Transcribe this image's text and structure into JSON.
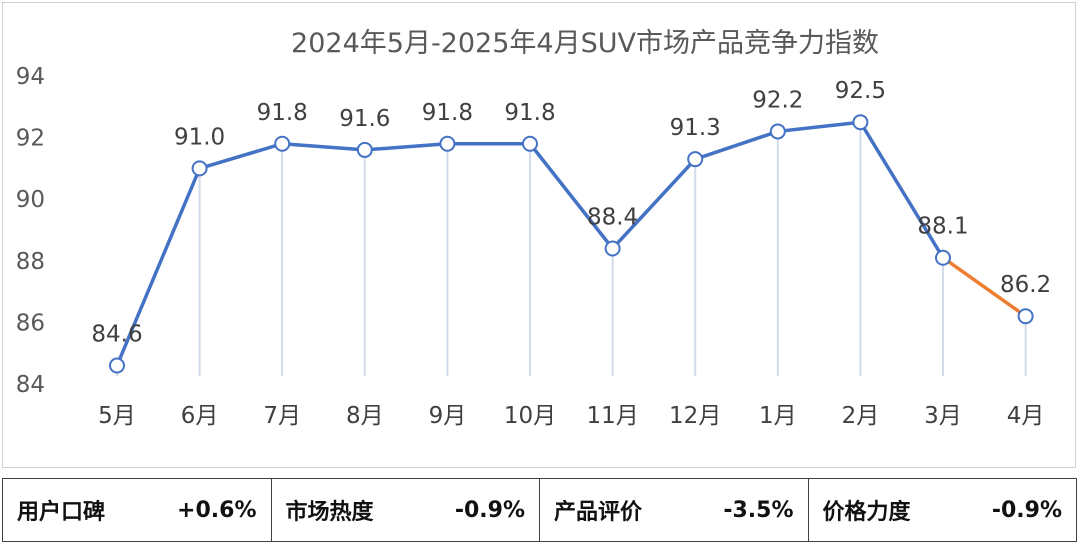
{
  "chart_data": {
    "type": "line",
    "title": "2024年5月-2025年4月SUV市场产品竞争力指数",
    "categories": [
      "5月",
      "6月",
      "7月",
      "8月",
      "9月",
      "10月",
      "11月",
      "12月",
      "1月",
      "2月",
      "3月",
      "4月"
    ],
    "series": [
      {
        "values": [
          84.6,
          91.0,
          91.8,
          91.6,
          91.8,
          91.8,
          88.4,
          91.3,
          92.2,
          92.5,
          88.1,
          86.2
        ]
      }
    ],
    "data_labels": [
      "84.6",
      "91.0",
      "91.8",
      "91.6",
      "91.8",
      "91.8",
      "88.4",
      "91.3",
      "92.2",
      "92.5",
      "88.1",
      "86.2"
    ],
    "highlight_last_segment_color": "#ED7D31",
    "line_color": "#4472C4",
    "ylim": [
      84,
      94
    ],
    "yticks": [
      84,
      86,
      88,
      90,
      92,
      94
    ],
    "ytick_labels": [
      "84",
      "86",
      "88",
      "90",
      "92",
      "94"
    ],
    "grid": false,
    "xlabel": "",
    "ylabel": ""
  },
  "metrics": [
    {
      "label": "用户口碑",
      "value": "+0.6%"
    },
    {
      "label": "市场热度",
      "value": "-0.9%"
    },
    {
      "label": "产品评价",
      "value": "-3.5%"
    },
    {
      "label": "价格力度",
      "value": "-0.9%"
    }
  ]
}
